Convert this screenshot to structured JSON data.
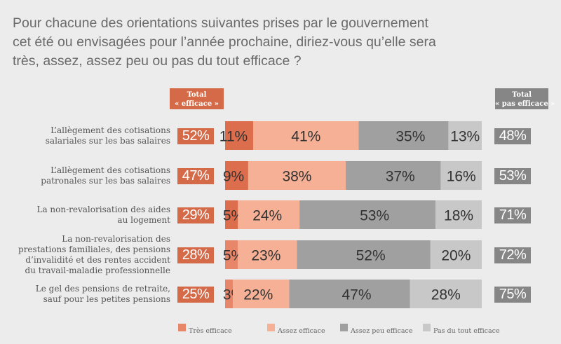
{
  "title_lines": [
    "Pour chacune des orientations suivantes prises par le gouvernement",
    "cet été ou envisagées pour l’année prochaine, diriez-vous qu’elle sera",
    "très, assez, assez peu ou pas du tout efficace ?"
  ],
  "headers": {
    "total_efficace": [
      "Total",
      "« efficace »"
    ],
    "total_pas_efficace": [
      "Total",
      "« pas efficace »"
    ]
  },
  "colors": {
    "tres_efficace": "#dc6d4d",
    "tres_efficace_light": "#e8866a",
    "assez_efficace": "#f5b096",
    "assez_peu_efficace": "#a0a0a0",
    "pas_du_tout_efficace": "#c8c8c8",
    "total_efficace": "#d56a48",
    "total_pas_efficace": "#868686"
  },
  "chart_data": {
    "type": "bar",
    "orientation": "horizontal",
    "stacked": true,
    "title": "Pour chacune des orientations suivantes prises par le gouvernement cet été ou envisagées pour l’année prochaine, diriez-vous qu’elle sera très, assez, assez peu ou pas du tout efficace ?",
    "xlabel": "",
    "ylabel": "",
    "xlim": [
      0,
      100
    ],
    "grid": false,
    "legend_position": "bottom",
    "categories": [
      [
        "L’allègement des cotisations",
        "salariales sur les bas salaires"
      ],
      [
        "L’allègement des cotisations",
        "patronales sur les bas salaires"
      ],
      [
        "La non-revalorisation des aides",
        "au logement"
      ],
      [
        "La non-revalorisation des",
        "prestations familiales, des pensions",
        "d’invalidité et des rentes accident",
        "du travail-maladie professionnelle"
      ],
      [
        "Le gel des pensions de retraite,",
        "sauf pour les petites pensions"
      ]
    ],
    "series": [
      {
        "name": "Très efficace",
        "values": [
          11,
          9,
          5,
          5,
          3
        ]
      },
      {
        "name": "Assez efficace",
        "values": [
          41,
          38,
          24,
          23,
          22
        ]
      },
      {
        "name": "Assez peu efficace",
        "values": [
          35,
          37,
          53,
          52,
          47
        ]
      },
      {
        "name": "Pas du tout efficace",
        "values": [
          13,
          16,
          18,
          20,
          28
        ]
      }
    ],
    "total_efficace": [
      52,
      47,
      29,
      28,
      25
    ],
    "total_pas_efficace": [
      48,
      53,
      71,
      72,
      75
    ],
    "value_suffix": "%"
  },
  "legend": [
    {
      "label": "Très efficace"
    },
    {
      "label": "Assez efficace"
    },
    {
      "label": "Assez peu efficace"
    },
    {
      "label": "Pas du tout efficace"
    }
  ]
}
